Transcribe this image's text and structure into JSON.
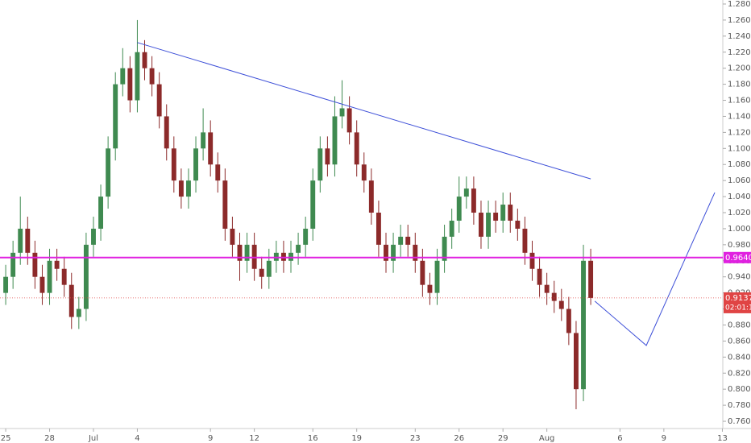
{
  "chart_data": {
    "type": "candlestick",
    "up_color": "#3f8a50",
    "down_color": "#8c2a2a",
    "x": [
      0,
      0.5,
      1,
      1.5,
      2,
      2.5,
      3,
      3.5,
      4,
      4.5,
      5,
      5.5,
      6,
      6.5,
      7,
      7.5,
      8,
      8.5,
      9,
      9.5,
      10,
      10.5,
      11,
      11.5,
      12,
      12.5,
      13,
      13.5,
      14,
      14.5,
      15,
      15.5,
      16,
      16.5,
      17,
      17.5,
      18,
      18.5,
      19,
      19.5,
      20,
      20.5,
      21,
      21.5,
      22,
      22.5,
      23,
      23.5,
      24,
      24.5,
      25,
      25.5,
      26,
      26.5,
      27,
      27.5,
      28,
      28.5,
      29,
      29.5,
      30,
      30.5,
      31,
      31.5,
      32,
      32.5,
      33,
      33.5,
      34,
      34.5,
      35,
      35.5,
      36,
      36.5,
      37,
      37.5,
      38,
      38.5,
      39,
      39.5,
      40
    ],
    "open": [
      0.92,
      0.94,
      0.97,
      1.0,
      0.97,
      0.94,
      0.92,
      0.96,
      0.95,
      0.93,
      0.89,
      0.9,
      0.98,
      1.0,
      1.04,
      1.1,
      1.18,
      1.2,
      1.16,
      1.22,
      1.2,
      1.18,
      1.14,
      1.1,
      1.06,
      1.04,
      1.06,
      1.1,
      1.12,
      1.08,
      1.06,
      1.0,
      0.98,
      0.96,
      0.98,
      0.95,
      0.94,
      0.96,
      0.97,
      0.96,
      0.97,
      0.98,
      1.0,
      1.06,
      1.1,
      1.08,
      1.14,
      1.15,
      1.12,
      1.08,
      1.06,
      1.02,
      0.98,
      0.96,
      0.98,
      0.99,
      0.98,
      0.96,
      0.93,
      0.92,
      0.96,
      0.99,
      1.01,
      1.04,
      1.05,
      1.02,
      0.99,
      1.02,
      1.01,
      1.03,
      1.01,
      1.0,
      0.97,
      0.95,
      0.93,
      0.92,
      0.91,
      0.9,
      0.87,
      0.8,
      0.96
    ],
    "high": [
      0.955,
      0.985,
      1.04,
      1.015,
      0.985,
      0.955,
      0.975,
      0.975,
      0.965,
      0.945,
      0.915,
      0.995,
      1.015,
      1.055,
      1.115,
      1.195,
      1.225,
      1.215,
      1.26,
      1.235,
      1.215,
      1.195,
      1.155,
      1.115,
      1.075,
      1.075,
      1.115,
      1.15,
      1.135,
      1.095,
      1.075,
      1.015,
      0.995,
      0.995,
      0.995,
      0.965,
      0.975,
      0.985,
      0.985,
      0.985,
      0.995,
      1.015,
      1.075,
      1.115,
      1.115,
      1.165,
      1.185,
      1.165,
      1.135,
      1.095,
      1.075,
      1.035,
      0.995,
      0.995,
      1.005,
      1.005,
      0.995,
      0.975,
      0.945,
      0.975,
      1.005,
      1.025,
      1.065,
      1.065,
      1.065,
      1.035,
      1.035,
      1.035,
      1.045,
      1.045,
      1.025,
      1.015,
      0.985,
      0.965,
      0.945,
      0.935,
      0.925,
      0.915,
      0.885,
      0.98,
      0.975
    ],
    "low": [
      0.905,
      0.925,
      0.955,
      0.955,
      0.925,
      0.905,
      0.905,
      0.935,
      0.915,
      0.875,
      0.875,
      0.885,
      0.965,
      0.985,
      1.025,
      1.085,
      1.165,
      1.145,
      1.145,
      1.185,
      1.165,
      1.125,
      1.085,
      1.045,
      1.025,
      1.025,
      1.045,
      1.085,
      1.065,
      1.045,
      0.985,
      0.965,
      0.935,
      0.945,
      0.935,
      0.925,
      0.925,
      0.945,
      0.945,
      0.945,
      0.955,
      0.965,
      0.985,
      1.045,
      1.065,
      1.065,
      1.125,
      1.105,
      1.065,
      1.045,
      1.005,
      0.965,
      0.945,
      0.945,
      0.965,
      0.965,
      0.945,
      0.915,
      0.905,
      0.905,
      0.945,
      0.975,
      0.995,
      1.025,
      1.005,
      0.975,
      0.975,
      0.995,
      0.995,
      0.995,
      0.985,
      0.955,
      0.935,
      0.915,
      0.905,
      0.895,
      0.885,
      0.855,
      0.775,
      0.785,
      0.905
    ],
    "close": [
      0.94,
      0.97,
      1.0,
      0.97,
      0.94,
      0.92,
      0.96,
      0.95,
      0.93,
      0.89,
      0.9,
      0.98,
      1.0,
      1.04,
      1.1,
      1.18,
      1.2,
      1.16,
      1.22,
      1.2,
      1.18,
      1.14,
      1.1,
      1.06,
      1.04,
      1.06,
      1.1,
      1.12,
      1.08,
      1.06,
      1.0,
      0.98,
      0.96,
      0.98,
      0.95,
      0.94,
      0.96,
      0.97,
      0.96,
      0.97,
      0.98,
      1.0,
      1.06,
      1.1,
      1.08,
      1.14,
      1.15,
      1.12,
      1.08,
      1.06,
      1.02,
      0.98,
      0.96,
      0.98,
      0.99,
      0.98,
      0.96,
      0.93,
      0.92,
      0.96,
      0.99,
      1.01,
      1.04,
      1.05,
      1.02,
      0.99,
      1.02,
      1.01,
      1.03,
      1.01,
      1.0,
      0.97,
      0.95,
      0.93,
      0.92,
      0.91,
      0.9,
      0.87,
      0.8,
      0.96,
      0.9137
    ],
    "xlim": [
      -0.39,
      49.03
    ],
    "ylim": [
      0.751,
      1.285
    ],
    "xticks": [
      {
        "value": 0,
        "label": "25"
      },
      {
        "value": 3,
        "label": "28"
      },
      {
        "value": 6,
        "label": "Jul"
      },
      {
        "value": 9,
        "label": "4"
      },
      {
        "value": 14,
        "label": "9"
      },
      {
        "value": 17,
        "label": "12"
      },
      {
        "value": 21,
        "label": "16"
      },
      {
        "value": 24,
        "label": "19"
      },
      {
        "value": 28,
        "label": "23"
      },
      {
        "value": 31,
        "label": "26"
      },
      {
        "value": 34,
        "label": "29"
      },
      {
        "value": 37,
        "label": "Aug"
      },
      {
        "value": 42,
        "label": "6"
      },
      {
        "value": 45,
        "label": "9"
      },
      {
        "value": 49,
        "label": "13"
      }
    ],
    "yticks": [
      {
        "value": 0.76,
        "label": "0.7600"
      },
      {
        "value": 0.78,
        "label": "0.7800"
      },
      {
        "value": 0.8,
        "label": "0.8000"
      },
      {
        "value": 0.82,
        "label": "0.8200"
      },
      {
        "value": 0.84,
        "label": "0.8400"
      },
      {
        "value": 0.86,
        "label": "0.8600"
      },
      {
        "value": 0.88,
        "label": "0.8800"
      },
      {
        "value": 0.9,
        "label": "0.9000"
      },
      {
        "value": 0.92,
        "label": "0.9200"
      },
      {
        "value": 0.94,
        "label": "0.9400"
      },
      {
        "value": 0.96,
        "label": "0.9600"
      },
      {
        "value": 0.98,
        "label": "0.9800"
      },
      {
        "value": 1.0,
        "label": "1.0000"
      },
      {
        "value": 1.02,
        "label": "1.0200"
      },
      {
        "value": 1.04,
        "label": "1.0400"
      },
      {
        "value": 1.06,
        "label": "1.0600"
      },
      {
        "value": 1.08,
        "label": "1.0800"
      },
      {
        "value": 1.1,
        "label": "1.1000"
      },
      {
        "value": 1.12,
        "label": "1.1200"
      },
      {
        "value": 1.14,
        "label": "1.1400"
      },
      {
        "value": 1.16,
        "label": "1.1600"
      },
      {
        "value": 1.18,
        "label": "1.1800"
      },
      {
        "value": 1.2,
        "label": "1.2000"
      },
      {
        "value": 1.22,
        "label": "1.2200"
      },
      {
        "value": 1.24,
        "label": "1.2400"
      },
      {
        "value": 1.26,
        "label": "1.2600"
      },
      {
        "value": 1.28,
        "label": "1.2800"
      }
    ],
    "hline": {
      "value": 0.964,
      "label": "0.9640",
      "color": "#e020e0"
    },
    "last_price": {
      "value": 0.9137,
      "label": "0.9137",
      "countdown": "02:01:17",
      "color": "#e04444"
    },
    "drawings": [
      {
        "color": "#3d4fd8",
        "x": [
          9,
          40
        ],
        "y": [
          1.232,
          1.062
        ]
      },
      {
        "color": "#3d4fd8",
        "x": [
          40.28,
          43.8,
          48.48
        ],
        "y": [
          0.9097,
          0.8545,
          1.045
        ]
      }
    ]
  }
}
